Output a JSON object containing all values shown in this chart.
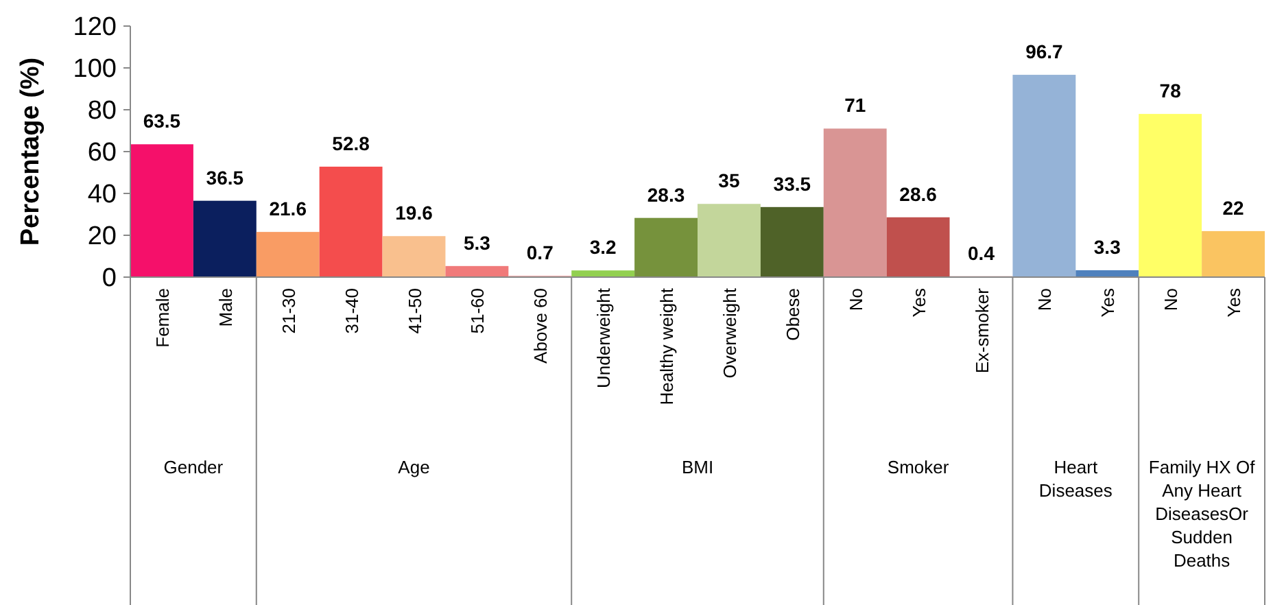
{
  "chart_data": {
    "type": "bar",
    "ylabel": "Percentage (%)",
    "categories": [
      "Female",
      "Male",
      "21-30",
      "31-40",
      "41-50",
      "51-60",
      "Above 60",
      "Underweight",
      "Healthy weight",
      "Overweight",
      "Obese",
      "No",
      "Yes",
      "Ex-smoker",
      "No",
      "Yes",
      "No",
      "Yes"
    ],
    "values": [
      63.5,
      36.5,
      21.6,
      52.8,
      19.6,
      5.3,
      0.7,
      3.2,
      28.3,
      35,
      33.5,
      71,
      28.6,
      0.4,
      96.7,
      3.3,
      78,
      22
    ],
    "colors": [
      "#f5106a",
      "#0b1f5e",
      "#f99c64",
      "#f44d4d",
      "#f9c08e",
      "#f07a7a",
      "#f4b0b0",
      "#92d050",
      "#76923c",
      "#c3d69b",
      "#4f6228",
      "#d99594",
      "#c0504d",
      "#c06060",
      "#95b3d7",
      "#4f81bd",
      "#ffff66",
      "#fac461"
    ],
    "ylim": [
      0,
      120
    ],
    "yticks": [
      0,
      20,
      40,
      60,
      80,
      100,
      120
    ],
    "grid": false,
    "data_labels": true,
    "annotations": [
      "Gender",
      "Age",
      "BMI",
      "Smoker",
      "Heart Diseases",
      "Family HX Of Any Heart DiseasesOr Sudden Deaths"
    ]
  }
}
